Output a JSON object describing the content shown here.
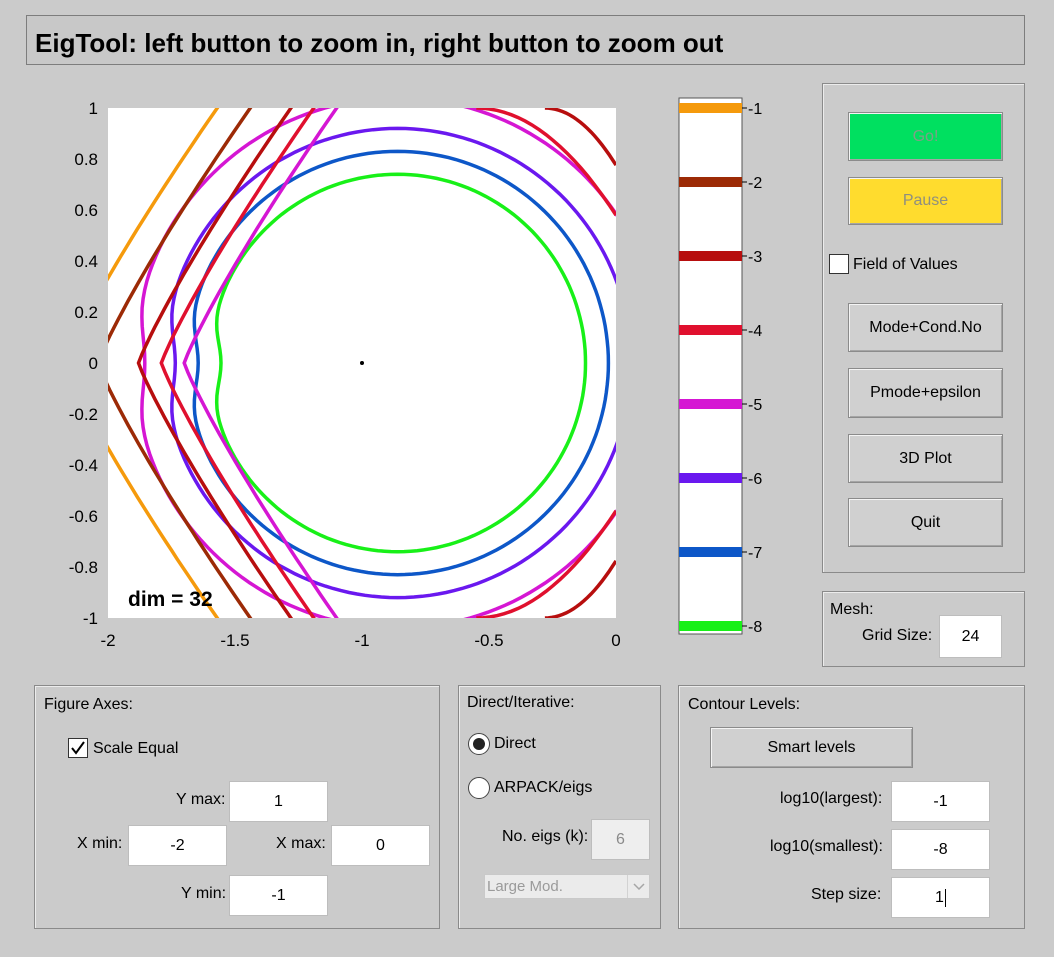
{
  "window": {
    "title": "EigTool: left button to zoom in, right button to zoom out"
  },
  "plot": {
    "annotation": "dim = 32",
    "x_ticks": [
      "-2",
      "-1.5",
      "-1",
      "-0.5",
      "0"
    ],
    "y_ticks": [
      "1",
      "0.8",
      "0.6",
      "0.4",
      "0.2",
      "0",
      "-0.2",
      "-0.4",
      "-0.6",
      "-0.8",
      "-1"
    ],
    "xlim": [
      -2,
      0
    ],
    "ylim": [
      -1,
      1
    ],
    "eigenvalue": {
      "x": -1,
      "y": 0
    }
  },
  "colorbar": {
    "levels": [
      {
        "label": "-1",
        "color": "#f59a0c"
      },
      {
        "label": "-2",
        "color": "#9c2a06"
      },
      {
        "label": "-3",
        "color": "#b70e0e"
      },
      {
        "label": "-4",
        "color": "#e0102e"
      },
      {
        "label": "-5",
        "color": "#d516d3"
      },
      {
        "label": "-6",
        "color": "#6a18ef"
      },
      {
        "label": "-7",
        "color": "#0d57c8"
      },
      {
        "label": "-8",
        "color": "#18f018"
      }
    ]
  },
  "controls": {
    "go_label": "Go!",
    "go_color": "#00e060",
    "pause_label": "Pause",
    "pause_color": "#ffdc2e",
    "field_of_values_label": "Field of Values",
    "field_of_values_checked": false,
    "mode_cond_label": "Mode+Cond.No",
    "pmode_label": "Pmode+epsilon",
    "plot3d_label": "3D Plot",
    "quit_label": "Quit"
  },
  "mesh": {
    "title": "Mesh:",
    "grid_size_label": "Grid Size:",
    "grid_size_value": "24"
  },
  "figure_axes": {
    "title": "Figure Axes:",
    "scale_equal_label": "Scale Equal",
    "scale_equal_checked": true,
    "ymax_label": "Y max:",
    "ymax_value": "1",
    "xmin_label": "X min:",
    "xmin_value": "-2",
    "xmax_label": "X max:",
    "xmax_value": "0",
    "ymin_label": "Y min:",
    "ymin_value": "-1"
  },
  "direct_iterative": {
    "title": "Direct/Iterative:",
    "direct_label": "Direct",
    "arpack_label": "ARPACK/eigs",
    "selected": "Direct",
    "neigs_label": "No. eigs (k):",
    "neigs_value": "6",
    "which_value": "Large Mod."
  },
  "contour_levels": {
    "title": "Contour Levels:",
    "smart_levels_label": "Smart  levels",
    "largest_label": "log10(largest):",
    "largest_value": "-1",
    "smallest_label": "log10(smallest):",
    "smallest_value": "-8",
    "step_label": "Step size:",
    "step_value": "1"
  }
}
